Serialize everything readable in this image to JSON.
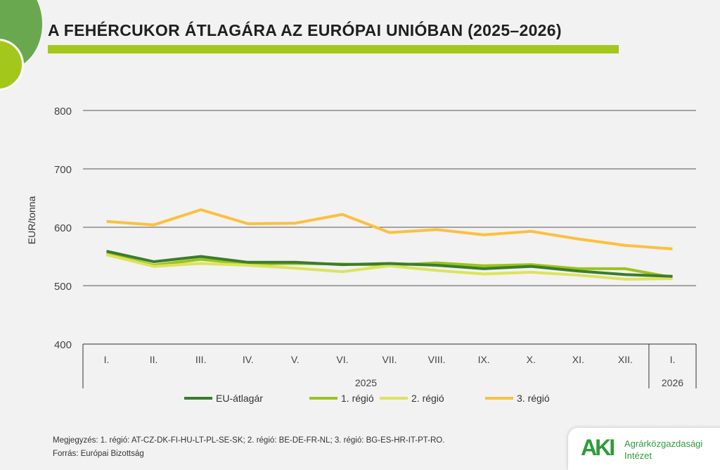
{
  "title": "A FEHÉRCUKOR ÁTLAGÁRA AZ EURÓPAI UNIÓBAN (2025–2026)",
  "note": "Megjegyzés: 1. régió: AT-CZ-DK-FI-HU-LT-PL-SE-SK; 2. régió: BE-DE-FR-NL; 3. régió: BG-ES-HR-IT-PT-RO.",
  "source": "Forrás: Európai Bizottság",
  "logo": {
    "mark": "AKI",
    "line1": "Agrárközgazdasági",
    "line2": "Intézet"
  },
  "chart_data": {
    "type": "line",
    "title": "A FEHÉRCUKOR ÁTLAGÁRA AZ EURÓPAI UNIÓBAN (2025–2026)",
    "ylabel": "EUR/tonna",
    "ylim": [
      400,
      800
    ],
    "yticks": [
      400,
      500,
      600,
      700,
      800
    ],
    "grid": true,
    "legend": "bottom",
    "categories": [
      "I.",
      "II.",
      "III.",
      "IV.",
      "V.",
      "VI.",
      "VII.",
      "VIII.",
      "IX.",
      "X.",
      "XI.",
      "XII.",
      "I."
    ],
    "groups": [
      {
        "label": "2025",
        "count": 12
      },
      {
        "label": "2026",
        "count": 1
      }
    ],
    "series": [
      {
        "name": "EU-átlagár",
        "color": "#3a7d2c",
        "values": [
          559,
          541,
          550,
          540,
          540,
          536,
          538,
          535,
          529,
          533,
          525,
          519,
          516
        ]
      },
      {
        "name": "1. régió",
        "color": "#9dc31a",
        "values": [
          555,
          535,
          545,
          537,
          538,
          537,
          535,
          539,
          534,
          536,
          529,
          529,
          514
        ]
      },
      {
        "name": "2. régió",
        "color": "#dde35c",
        "values": [
          553,
          533,
          538,
          535,
          530,
          524,
          534,
          526,
          520,
          523,
          518,
          511,
          512
        ]
      },
      {
        "name": "3. régió",
        "color": "#fcc03c",
        "values": [
          610,
          604,
          630,
          606,
          607,
          622,
          591,
          596,
          587,
          593,
          580,
          569,
          563
        ]
      }
    ]
  }
}
